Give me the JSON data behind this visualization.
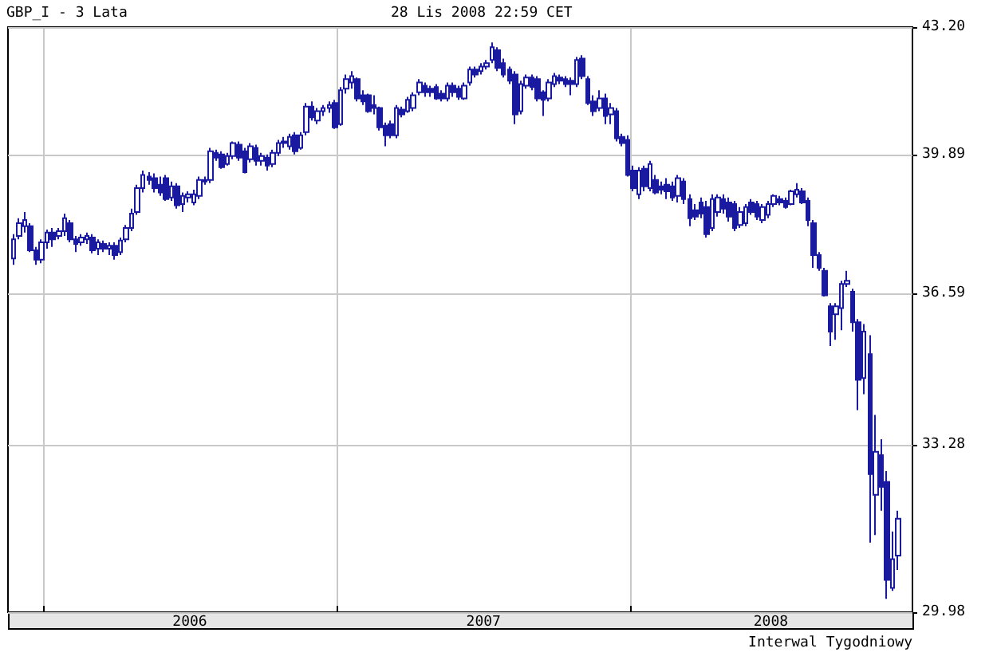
{
  "chart_data": {
    "type": "candlestick",
    "title": "GBP_I - 3 Lata",
    "subtitle": "28 Lis 2008 22:59 CET",
    "annotations": [
      "Interwal Tygodniowy"
    ],
    "color": "#1a1aa0",
    "log": true,
    "grid": true,
    "ylim": [
      29.98,
      43.2
    ],
    "yticks": [
      29.98,
      33.28,
      36.59,
      39.89,
      {
        "value": 43.2,
        "label": "43.20"
      }
    ],
    "xlim": [
      "2005-11-18",
      "2008-12-16"
    ],
    "xticks": [
      {
        "value": "2006-01-01",
        "label": null
      },
      {
        "value": "2006-07-02",
        "label": "2006"
      },
      {
        "value": "2007-01-01",
        "label": null
      },
      {
        "value": "2007-07-02",
        "label": "2007"
      },
      {
        "value": "2008-01-01",
        "label": null
      },
      {
        "value": "2008-06-23",
        "label": "2008"
      }
    ],
    "x": [
      "2005-11-25",
      "2005-12-02",
      "2005-12-09",
      "2005-12-16",
      "2005-12-23",
      "2005-12-30",
      "2006-01-06",
      "2006-01-13",
      "2006-01-20",
      "2006-01-27",
      "2006-02-03",
      "2006-02-10",
      "2006-02-17",
      "2006-02-24",
      "2006-03-03",
      "2006-03-10",
      "2006-03-17",
      "2006-03-24",
      "2006-03-31",
      "2006-04-07",
      "2006-04-14",
      "2006-04-21",
      "2006-04-28",
      "2006-05-05",
      "2006-05-12",
      "2006-05-19",
      "2006-05-26",
      "2006-06-02",
      "2006-06-09",
      "2006-06-16",
      "2006-06-23",
      "2006-06-30",
      "2006-07-07",
      "2006-07-14",
      "2006-07-21",
      "2006-07-28",
      "2006-08-04",
      "2006-08-11",
      "2006-08-18",
      "2006-08-25",
      "2006-09-01",
      "2006-09-08",
      "2006-09-15",
      "2006-09-22",
      "2006-09-29",
      "2006-10-06",
      "2006-10-13",
      "2006-10-20",
      "2006-10-27",
      "2006-11-03",
      "2006-11-10",
      "2006-11-17",
      "2006-11-24",
      "2006-12-01",
      "2006-12-08",
      "2006-12-15",
      "2006-12-22",
      "2006-12-29",
      "2007-01-05",
      "2007-01-12",
      "2007-01-19",
      "2007-01-26",
      "2007-02-02",
      "2007-02-09",
      "2007-02-16",
      "2007-02-23",
      "2007-03-02",
      "2007-03-09",
      "2007-03-16",
      "2007-03-23",
      "2007-03-30",
      "2007-04-06",
      "2007-04-13",
      "2007-04-20",
      "2007-04-27",
      "2007-05-04",
      "2007-05-11",
      "2007-05-18",
      "2007-05-25",
      "2007-06-01",
      "2007-06-08",
      "2007-06-15",
      "2007-06-22",
      "2007-06-29",
      "2007-07-06",
      "2007-07-13",
      "2007-07-20",
      "2007-07-27",
      "2007-08-03",
      "2007-08-10",
      "2007-08-17",
      "2007-08-24",
      "2007-08-31",
      "2007-09-07",
      "2007-09-14",
      "2007-09-21",
      "2007-09-28",
      "2007-10-05",
      "2007-10-12",
      "2007-10-19",
      "2007-10-26",
      "2007-11-02",
      "2007-11-09",
      "2007-11-16",
      "2007-11-23",
      "2007-11-30",
      "2007-12-07",
      "2007-12-14",
      "2007-12-21",
      "2007-12-28",
      "2008-01-04",
      "2008-01-11",
      "2008-01-18",
      "2008-01-25",
      "2008-02-01",
      "2008-02-08",
      "2008-02-15",
      "2008-02-22",
      "2008-02-29",
      "2008-03-07",
      "2008-03-14",
      "2008-03-21",
      "2008-03-28",
      "2008-04-04",
      "2008-04-11",
      "2008-04-18",
      "2008-04-25",
      "2008-05-02",
      "2008-05-09",
      "2008-05-16",
      "2008-05-23",
      "2008-05-30",
      "2008-06-06",
      "2008-06-13",
      "2008-06-20",
      "2008-06-27",
      "2008-07-04",
      "2008-07-11",
      "2008-07-18",
      "2008-07-25",
      "2008-08-01",
      "2008-08-08",
      "2008-08-15",
      "2008-08-22",
      "2008-08-29",
      "2008-09-05",
      "2008-09-12",
      "2008-09-19",
      "2008-09-26",
      "2008-10-03",
      "2008-10-10",
      "2008-10-17",
      "2008-10-24",
      "2008-10-31",
      "2008-11-07",
      "2008-11-14",
      "2008-11-21",
      "2008-11-28"
    ],
    "ohlc": [
      [
        37.39,
        37.96,
        37.24,
        37.84
      ],
      [
        37.92,
        38.34,
        37.84,
        38.22
      ],
      [
        38.15,
        38.49,
        38.0,
        38.3
      ],
      [
        38.15,
        38.22,
        37.54,
        37.58
      ],
      [
        37.58,
        37.66,
        37.24,
        37.36
      ],
      [
        37.36,
        37.84,
        37.28,
        37.77
      ],
      [
        37.77,
        38.07,
        37.62,
        38.0
      ],
      [
        38.0,
        38.11,
        37.66,
        37.84
      ],
      [
        37.92,
        38.11,
        37.84,
        38.03
      ],
      [
        38.03,
        38.45,
        37.92,
        38.34
      ],
      [
        38.22,
        38.3,
        37.77,
        37.84
      ],
      [
        37.84,
        37.92,
        37.54,
        37.73
      ],
      [
        37.77,
        37.96,
        37.69,
        37.88
      ],
      [
        37.84,
        38.0,
        37.73,
        37.92
      ],
      [
        37.88,
        37.96,
        37.51,
        37.58
      ],
      [
        37.62,
        37.84,
        37.47,
        37.77
      ],
      [
        37.73,
        37.81,
        37.54,
        37.62
      ],
      [
        37.62,
        37.77,
        37.47,
        37.69
      ],
      [
        37.69,
        37.77,
        37.36,
        37.47
      ],
      [
        37.54,
        37.88,
        37.47,
        37.81
      ],
      [
        37.84,
        38.18,
        37.77,
        38.11
      ],
      [
        38.11,
        38.57,
        38.03,
        38.45
      ],
      [
        38.49,
        39.15,
        38.42,
        39.07
      ],
      [
        39.07,
        39.5,
        38.96,
        39.39
      ],
      [
        39.35,
        39.46,
        39.15,
        39.27
      ],
      [
        39.31,
        39.43,
        38.96,
        39.07
      ],
      [
        39.15,
        39.35,
        38.88,
        38.96
      ],
      [
        39.31,
        39.39,
        38.76,
        38.8
      ],
      [
        38.84,
        39.23,
        38.76,
        39.11
      ],
      [
        39.11,
        39.19,
        38.57,
        38.65
      ],
      [
        38.68,
        38.96,
        38.49,
        38.88
      ],
      [
        38.84,
        38.99,
        38.72,
        38.92
      ],
      [
        38.72,
        39.03,
        38.65,
        38.92
      ],
      [
        38.88,
        39.35,
        38.8,
        39.27
      ],
      [
        39.23,
        39.35,
        39.15,
        39.27
      ],
      [
        39.27,
        40.06,
        39.19,
        39.98
      ],
      [
        39.94,
        40.02,
        39.74,
        39.82
      ],
      [
        39.9,
        39.98,
        39.54,
        39.58
      ],
      [
        39.66,
        39.94,
        39.62,
        39.86
      ],
      [
        39.86,
        40.22,
        39.78,
        40.18
      ],
      [
        40.14,
        40.22,
        39.74,
        39.82
      ],
      [
        39.98,
        40.06,
        39.43,
        39.46
      ],
      [
        39.78,
        40.18,
        39.7,
        40.1
      ],
      [
        40.06,
        40.14,
        39.62,
        39.74
      ],
      [
        39.74,
        39.94,
        39.62,
        39.86
      ],
      [
        39.82,
        39.9,
        39.5,
        39.62
      ],
      [
        39.66,
        40.02,
        39.58,
        39.94
      ],
      [
        39.94,
        40.26,
        39.86,
        40.18
      ],
      [
        40.18,
        40.34,
        40.06,
        40.22
      ],
      [
        40.1,
        40.42,
        40.02,
        40.34
      ],
      [
        40.38,
        40.46,
        39.9,
        39.98
      ],
      [
        40.06,
        40.46,
        40.02,
        40.38
      ],
      [
        40.46,
        41.2,
        40.38,
        41.11
      ],
      [
        41.11,
        41.24,
        40.75,
        40.83
      ],
      [
        40.75,
        41.07,
        40.66,
        40.99
      ],
      [
        40.99,
        41.15,
        40.87,
        41.07
      ],
      [
        41.07,
        41.24,
        40.95,
        41.15
      ],
      [
        41.2,
        41.28,
        40.54,
        40.58
      ],
      [
        40.66,
        41.61,
        40.62,
        41.53
      ],
      [
        41.57,
        41.94,
        41.44,
        41.82
      ],
      [
        41.73,
        42.03,
        41.57,
        41.9
      ],
      [
        41.82,
        41.86,
        41.24,
        41.32
      ],
      [
        41.4,
        41.53,
        41.15,
        41.24
      ],
      [
        41.4,
        41.44,
        40.95,
        40.99
      ],
      [
        41.15,
        41.4,
        40.91,
        41.07
      ],
      [
        41.07,
        41.11,
        40.5,
        40.58
      ],
      [
        40.62,
        40.7,
        40.1,
        40.38
      ],
      [
        40.66,
        40.75,
        40.3,
        40.38
      ],
      [
        40.38,
        41.15,
        40.3,
        41.07
      ],
      [
        41.03,
        41.11,
        40.83,
        40.91
      ],
      [
        40.99,
        41.36,
        40.95,
        41.28
      ],
      [
        41.07,
        41.48,
        40.99,
        41.4
      ],
      [
        41.48,
        41.82,
        41.4,
        41.73
      ],
      [
        41.65,
        41.73,
        41.36,
        41.48
      ],
      [
        41.57,
        41.65,
        41.36,
        41.48
      ],
      [
        41.61,
        41.69,
        41.28,
        41.32
      ],
      [
        41.44,
        41.53,
        41.24,
        41.32
      ],
      [
        41.32,
        41.73,
        41.24,
        41.65
      ],
      [
        41.65,
        41.73,
        41.36,
        41.48
      ],
      [
        41.57,
        41.65,
        41.28,
        41.36
      ],
      [
        41.32,
        41.73,
        41.28,
        41.65
      ],
      [
        41.73,
        42.15,
        41.65,
        42.07
      ],
      [
        42.07,
        42.15,
        41.86,
        41.94
      ],
      [
        42.03,
        42.24,
        41.94,
        42.15
      ],
      [
        42.15,
        42.32,
        42.07,
        42.24
      ],
      [
        42.32,
        42.79,
        42.24,
        42.66
      ],
      [
        42.58,
        42.66,
        42.03,
        42.11
      ],
      [
        42.24,
        42.36,
        41.86,
        41.94
      ],
      [
        42.07,
        42.15,
        41.69,
        41.78
      ],
      [
        41.94,
        42.03,
        40.66,
        40.91
      ],
      [
        40.99,
        41.78,
        40.91,
        41.69
      ],
      [
        41.65,
        41.94,
        41.57,
        41.86
      ],
      [
        41.86,
        41.94,
        41.53,
        41.61
      ],
      [
        41.82,
        41.9,
        41.24,
        41.32
      ],
      [
        41.48,
        41.53,
        40.87,
        41.28
      ],
      [
        41.32,
        41.82,
        41.24,
        41.73
      ],
      [
        41.69,
        41.98,
        41.61,
        41.9
      ],
      [
        41.86,
        41.94,
        41.69,
        41.78
      ],
      [
        41.82,
        41.9,
        41.61,
        41.69
      ],
      [
        41.78,
        41.86,
        41.4,
        41.69
      ],
      [
        41.69,
        42.4,
        41.61,
        42.32
      ],
      [
        42.36,
        42.45,
        41.82,
        41.9
      ],
      [
        41.82,
        41.9,
        41.15,
        41.2
      ],
      [
        41.24,
        41.4,
        40.87,
        40.99
      ],
      [
        41.07,
        41.53,
        40.99,
        41.32
      ],
      [
        41.32,
        41.44,
        40.66,
        40.87
      ],
      [
        40.91,
        41.2,
        40.66,
        41.07
      ],
      [
        40.99,
        41.07,
        40.22,
        40.3
      ],
      [
        40.34,
        40.42,
        40.1,
        40.18
      ],
      [
        40.26,
        40.38,
        39.35,
        39.39
      ],
      [
        39.5,
        39.62,
        38.99,
        39.07
      ],
      [
        38.92,
        39.58,
        38.8,
        39.5
      ],
      [
        39.54,
        39.62,
        38.99,
        39.11
      ],
      [
        39.07,
        39.74,
        38.99,
        39.66
      ],
      [
        39.27,
        39.39,
        38.92,
        38.96
      ],
      [
        39.11,
        39.23,
        38.92,
        39.03
      ],
      [
        39.15,
        39.31,
        38.8,
        38.99
      ],
      [
        39.11,
        39.23,
        38.76,
        38.84
      ],
      [
        38.88,
        39.39,
        38.72,
        39.31
      ],
      [
        39.23,
        39.31,
        38.68,
        38.8
      ],
      [
        38.8,
        38.92,
        38.15,
        38.34
      ],
      [
        38.53,
        38.68,
        38.3,
        38.38
      ],
      [
        38.72,
        38.84,
        38.34,
        38.45
      ],
      [
        38.61,
        38.76,
        37.88,
        37.96
      ],
      [
        38.11,
        38.92,
        38.03,
        38.8
      ],
      [
        38.49,
        38.92,
        38.38,
        38.84
      ],
      [
        38.8,
        38.92,
        38.45,
        38.57
      ],
      [
        38.72,
        38.84,
        38.26,
        38.38
      ],
      [
        38.68,
        38.76,
        38.03,
        38.11
      ],
      [
        38.18,
        38.61,
        38.11,
        38.49
      ],
      [
        38.22,
        38.68,
        38.15,
        38.61
      ],
      [
        38.72,
        38.8,
        38.42,
        38.49
      ],
      [
        38.68,
        38.76,
        38.3,
        38.38
      ],
      [
        38.3,
        38.68,
        38.22,
        38.61
      ],
      [
        38.42,
        38.76,
        38.34,
        38.68
      ],
      [
        38.68,
        38.92,
        38.61,
        38.88
      ],
      [
        38.8,
        38.88,
        38.65,
        38.72
      ],
      [
        38.76,
        38.84,
        38.57,
        38.61
      ],
      [
        38.68,
        39.03,
        38.65,
        38.99
      ],
      [
        38.92,
        39.19,
        38.84,
        39.03
      ],
      [
        38.99,
        39.07,
        38.68,
        38.72
      ],
      [
        38.76,
        38.84,
        38.15,
        38.3
      ],
      [
        38.22,
        38.3,
        37.17,
        37.47
      ],
      [
        37.47,
        37.54,
        37.1,
        37.17
      ],
      [
        37.1,
        37.17,
        36.51,
        36.54
      ],
      [
        36.29,
        36.36,
        35.4,
        35.72
      ],
      [
        36.11,
        36.36,
        35.54,
        36.29
      ],
      [
        36.25,
        36.87,
        35.75,
        36.8
      ],
      [
        36.8,
        37.1,
        36.73,
        36.87
      ],
      [
        36.62,
        36.69,
        35.72,
        35.93
      ],
      [
        35.93,
        36.0,
        34.01,
        34.66
      ],
      [
        34.7,
        35.89,
        34.35,
        35.72
      ],
      [
        35.22,
        35.64,
        31.31,
        32.68
      ],
      [
        32.26,
        33.91,
        31.46,
        33.14
      ],
      [
        33.07,
        33.4,
        31.94,
        32.42
      ],
      [
        32.52,
        32.74,
        30.23,
        30.59
      ],
      [
        30.44,
        31.53,
        30.38,
        30.99
      ],
      [
        31.06,
        31.94,
        30.78,
        31.78
      ]
    ]
  }
}
